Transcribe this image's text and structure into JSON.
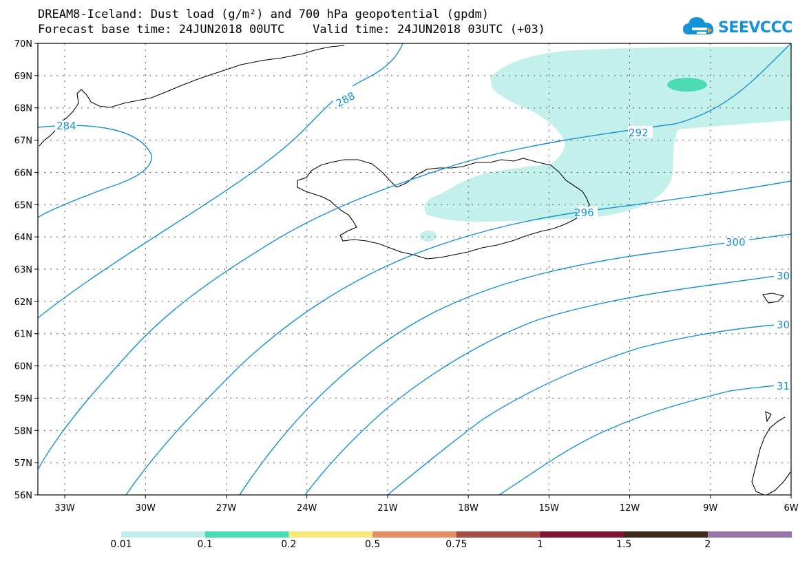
{
  "header": {
    "title_line1": "DREAM8-Iceland: Dust load (g/m²) and 700 hPa geopotential (gpdm)",
    "title_line2": "Forecast base time: 24JUN2018 00UTC    Valid time: 24JUN2018 03UTC (+03)"
  },
  "logo": {
    "text": "SEEVCCC",
    "icon": "cloud-icon",
    "color": "#1591d9"
  },
  "map": {
    "lat_labels": [
      "70N",
      "69N",
      "68N",
      "67N",
      "66N",
      "65N",
      "64N",
      "63N",
      "62N",
      "61N",
      "60N",
      "59N",
      "58N",
      "57N",
      "56N"
    ],
    "lon_labels": [
      "33W",
      "30W",
      "27W",
      "24W",
      "21W",
      "18W",
      "15W",
      "12W",
      "9W",
      "6W"
    ],
    "contour_color": "#1591d9",
    "contour_labels": [
      "284",
      "288",
      "292",
      "296",
      "300",
      "30",
      "30",
      "31"
    ]
  },
  "colorbar": {
    "colors": [
      "#c3f0eb",
      "#4cdcb3",
      "#f7e87c",
      "#e38f66",
      "#a24f48",
      "#7d1533",
      "#3b2a1a",
      "#9676a8"
    ],
    "labels": [
      "0.01",
      "0.1",
      "0.2",
      "0.5",
      "0.75",
      "1",
      "1.5",
      "2"
    ]
  }
}
